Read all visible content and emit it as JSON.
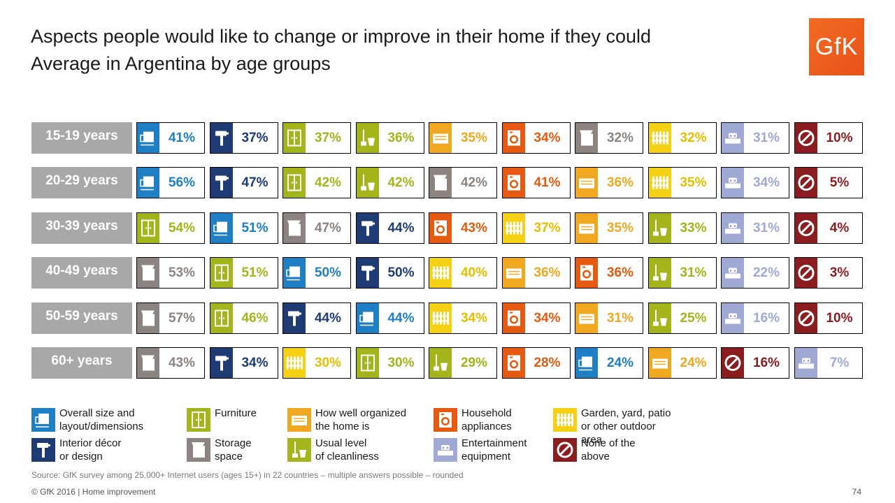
{
  "title": {
    "line1": "Aspects people would like to change or improve in their home if they could",
    "line2": "Average in Argentina by age groups"
  },
  "logo": "GfK",
  "colors": {
    "layout": "#1f7fc4",
    "interior": "#1f3b73",
    "furniture": "#a3b51a",
    "cleanliness": "#a3b51a",
    "storage": "#8c8480",
    "organized": "#f0a820",
    "appliances": "#e55a10",
    "garden": "#f5d116",
    "entertainment": "#9fa9d4",
    "none": "#8b1c1f",
    "age_bg": "#a8a8a8"
  },
  "legend": [
    {
      "key": "layout",
      "label": "Overall size and\nlayout/dimensions",
      "icon": "layout-icon"
    },
    {
      "key": "furniture",
      "label": "Furniture",
      "icon": "furniture-icon"
    },
    {
      "key": "organized",
      "label": "How well organized\nthe home is",
      "icon": "organized-icon"
    },
    {
      "key": "appliances",
      "label": "Household\nappliances",
      "icon": "appliance-icon"
    },
    {
      "key": "garden",
      "label": "Garden, yard, patio\nor other outdoor area",
      "icon": "garden-icon"
    },
    {
      "key": "interior",
      "label": "Interior décor\nor design",
      "icon": "paint-roller-icon"
    },
    {
      "key": "storage",
      "label": "Storage\nspace",
      "icon": "storage-icon"
    },
    {
      "key": "cleanliness",
      "label": "Usual level\nof cleanliness",
      "icon": "cleaning-icon"
    },
    {
      "key": "entertainment",
      "label": "Entertainment\nequipment",
      "icon": "entertainment-icon"
    },
    {
      "key": "none",
      "label": "None of the\nabove",
      "icon": "none-icon"
    }
  ],
  "chart_data": {
    "type": "table",
    "title": "Aspects people would like to change or improve in their home if they could",
    "subtitle": "Average in Argentina by age groups",
    "unit": "%",
    "rows": [
      {
        "label": "15-19 years",
        "values": [
          {
            "key": "layout",
            "value": 41
          },
          {
            "key": "interior",
            "value": 37
          },
          {
            "key": "furniture",
            "value": 37
          },
          {
            "key": "cleanliness",
            "value": 36
          },
          {
            "key": "organized",
            "value": 35
          },
          {
            "key": "appliances",
            "value": 34
          },
          {
            "key": "storage",
            "value": 32
          },
          {
            "key": "garden",
            "value": 32
          },
          {
            "key": "entertainment",
            "value": 31
          },
          {
            "key": "none",
            "value": 10
          }
        ]
      },
      {
        "label": "20-29 years",
        "values": [
          {
            "key": "layout",
            "value": 56
          },
          {
            "key": "interior",
            "value": 47
          },
          {
            "key": "furniture",
            "value": 42
          },
          {
            "key": "cleanliness",
            "value": 42
          },
          {
            "key": "storage",
            "value": 42
          },
          {
            "key": "appliances",
            "value": 41
          },
          {
            "key": "organized",
            "value": 36
          },
          {
            "key": "garden",
            "value": 35
          },
          {
            "key": "entertainment",
            "value": 34
          },
          {
            "key": "none",
            "value": 5
          }
        ]
      },
      {
        "label": "30-39 years",
        "values": [
          {
            "key": "furniture",
            "value": 54
          },
          {
            "key": "layout",
            "value": 51
          },
          {
            "key": "storage",
            "value": 47
          },
          {
            "key": "interior",
            "value": 44
          },
          {
            "key": "appliances",
            "value": 43
          },
          {
            "key": "garden",
            "value": 37
          },
          {
            "key": "organized",
            "value": 35
          },
          {
            "key": "cleanliness",
            "value": 33
          },
          {
            "key": "entertainment",
            "value": 31
          },
          {
            "key": "none",
            "value": 4
          }
        ]
      },
      {
        "label": "40-49 years",
        "values": [
          {
            "key": "storage",
            "value": 53
          },
          {
            "key": "furniture",
            "value": 51
          },
          {
            "key": "layout",
            "value": 50
          },
          {
            "key": "interior",
            "value": 50
          },
          {
            "key": "garden",
            "value": 40
          },
          {
            "key": "organized",
            "value": 36
          },
          {
            "key": "appliances",
            "value": 36
          },
          {
            "key": "cleanliness",
            "value": 31
          },
          {
            "key": "entertainment",
            "value": 22
          },
          {
            "key": "none",
            "value": 3
          }
        ]
      },
      {
        "label": "50-59 years",
        "values": [
          {
            "key": "storage",
            "value": 57
          },
          {
            "key": "furniture",
            "value": 46
          },
          {
            "key": "interior",
            "value": 44
          },
          {
            "key": "layout",
            "value": 44
          },
          {
            "key": "garden",
            "value": 34
          },
          {
            "key": "appliances",
            "value": 34
          },
          {
            "key": "organized",
            "value": 31
          },
          {
            "key": "cleanliness",
            "value": 25
          },
          {
            "key": "entertainment",
            "value": 16
          },
          {
            "key": "none",
            "value": 10
          }
        ]
      },
      {
        "label": "60+ years",
        "values": [
          {
            "key": "storage",
            "value": 43
          },
          {
            "key": "interior",
            "value": 34
          },
          {
            "key": "garden",
            "value": 30
          },
          {
            "key": "furniture",
            "value": 30
          },
          {
            "key": "cleanliness",
            "value": 29
          },
          {
            "key": "appliances",
            "value": 28
          },
          {
            "key": "layout",
            "value": 24
          },
          {
            "key": "organized",
            "value": 24
          },
          {
            "key": "none",
            "value": 16
          },
          {
            "key": "entertainment",
            "value": 7
          }
        ]
      }
    ]
  },
  "source": "Source: GfK survey among 25,000+ Internet users (ages 15+) in 22 countries – multiple answers possible – rounded",
  "footer": "© GfK 2016 | Home improvement",
  "page_number": "74"
}
